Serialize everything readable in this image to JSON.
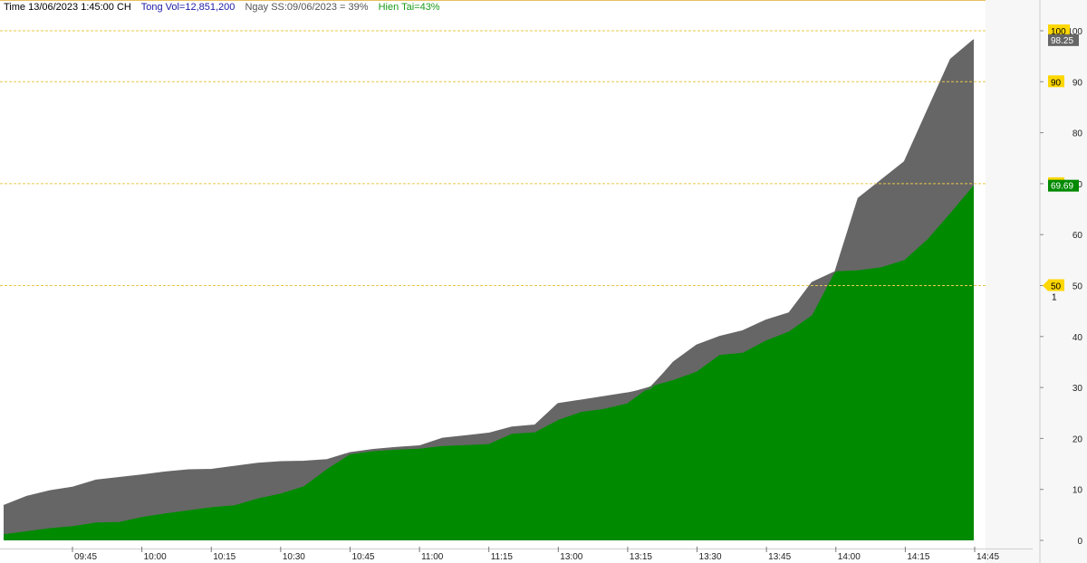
{
  "header": {
    "time": "Time 13/06/2023 1:45:00 CH",
    "total_vol": "Tong Vol=12,851,200",
    "prev_session": "Ngay SS:09/06/2023 = 39%",
    "current": "Hien Tai=43%"
  },
  "colors": {
    "current_fill": "#008a00",
    "compare_fill": "#666666",
    "grid_line": "#e6c84a",
    "badge_yellow": "#ffd700",
    "header_blue": "#1a1aa6",
    "header_gray": "#555555",
    "header_green": "#1a9a1a"
  },
  "chart_data": {
    "type": "area",
    "ylim": [
      0,
      100
    ],
    "y_ticks": [
      "0",
      "10",
      "20",
      "30",
      "40",
      "50",
      "60",
      "70",
      "80",
      "90",
      "100"
    ],
    "x_tick_labels": [
      "09:45",
      "10:00",
      "10:15",
      "10:30",
      "10:45",
      "11:00",
      "11:15",
      "13:00",
      "13:15",
      "13:30",
      "13:45",
      "14:00",
      "14:15",
      "14:45"
    ],
    "reference_levels": [
      50,
      70,
      90,
      100
    ],
    "level_badges": [
      "100",
      "90",
      "70",
      "50"
    ],
    "value_badges": {
      "compare": "98.25",
      "current": "69.69"
    },
    "marker_label": "1",
    "series": [
      {
        "values": [
          6.8,
          8.6,
          9.7,
          10.4,
          11.8,
          12.3,
          12.8,
          13.4,
          13.8,
          13.9,
          14.5,
          15.1,
          15.4,
          15.5,
          15.8,
          17.2,
          17.8,
          18.2,
          18.5,
          20.0,
          20.5,
          21.0,
          22.2,
          22.6,
          26.8,
          27.5,
          28.2,
          28.9,
          29.8,
          35.0,
          38.3,
          40.0,
          41.1,
          43.2,
          44.6,
          50.6,
          52.7,
          67.1,
          70.7,
          74.3,
          84.4,
          94.4,
          98.25
        ]
      },
      {
        "values": [
          1.2,
          1.8,
          2.4,
          2.8,
          3.5,
          3.6,
          4.6,
          5.3,
          5.9,
          6.5,
          6.9,
          8.2,
          9.2,
          10.6,
          14.0,
          16.9,
          17.5,
          17.8,
          18.0,
          18.5,
          18.7,
          18.9,
          20.9,
          21.2,
          23.6,
          25.2,
          25.8,
          26.9,
          30.2,
          31.5,
          33.1,
          36.4,
          36.8,
          39.2,
          41.0,
          44.2,
          52.8,
          53.0,
          53.6,
          55.0,
          59.1,
          64.3,
          69.69
        ]
      }
    ]
  }
}
